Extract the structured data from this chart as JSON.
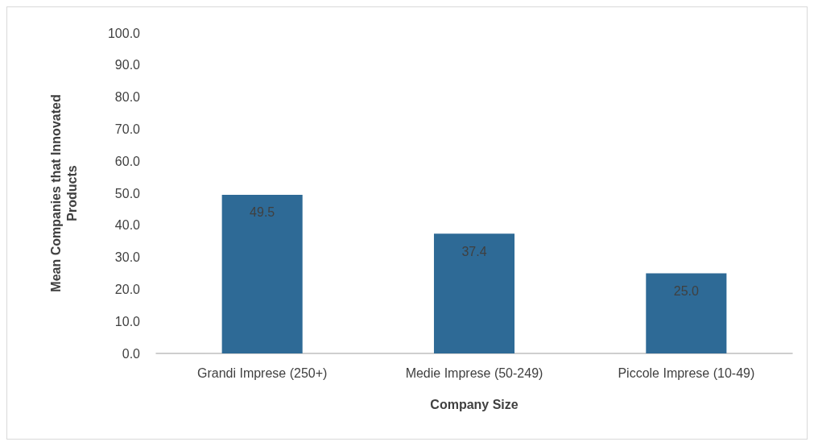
{
  "chart_data": {
    "type": "bar",
    "xlabel": "Company Size",
    "ylabel": "Mean Companies that Innovated\nProducts",
    "categories": [
      "Grandi Imprese (250+)",
      "Medie Imprese (50-249)",
      "Piccole Imprese (10-49)"
    ],
    "values": [
      49.5,
      37.4,
      25.0
    ],
    "value_labels": [
      "49.5",
      "37.4",
      "25.0"
    ],
    "color": "#2e6a96",
    "ylim": [
      0,
      100
    ],
    "yticks": [
      {
        "value": 0,
        "label": "0.0"
      },
      {
        "value": 10,
        "label": "10.0"
      },
      {
        "value": 20,
        "label": "20.0"
      },
      {
        "value": 30,
        "label": "30.0"
      },
      {
        "value": 40,
        "label": "40.0"
      },
      {
        "value": 50,
        "label": "50.0"
      },
      {
        "value": 60,
        "label": "60.0"
      },
      {
        "value": 70,
        "label": "70.0"
      },
      {
        "value": 80,
        "label": "80.0"
      },
      {
        "value": 90,
        "label": "90.0"
      },
      {
        "value": 100,
        "label": "100.0"
      }
    ],
    "grid": false
  }
}
